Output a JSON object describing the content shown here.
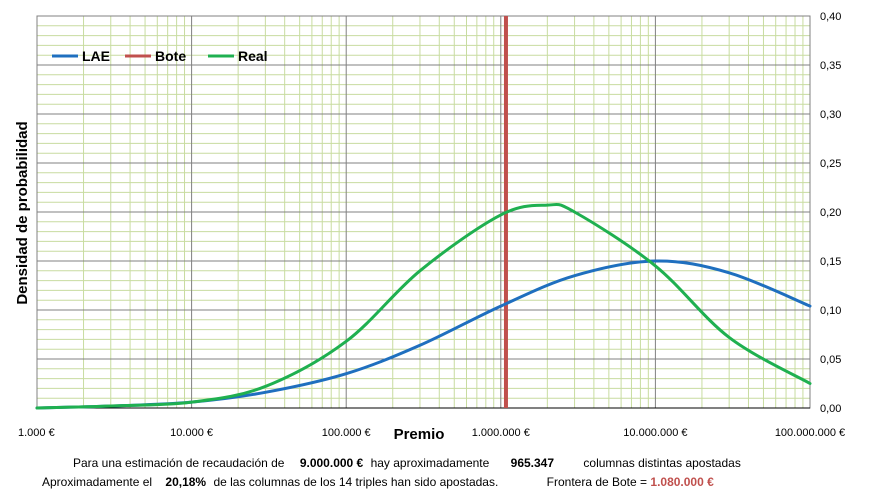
{
  "chart_data": {
    "type": "line",
    "x_scale": "log",
    "xlim": [
      1000,
      100000000
    ],
    "ylim": [
      0,
      0.4
    ],
    "xlabel": "Premio",
    "ylabel": "Densidad de probabilidad",
    "x_tick_labels": [
      "1.000 €",
      "10.000 €",
      "100.000 €",
      "1.000.000 €",
      "10.000.000 €",
      "100.000.000 €"
    ],
    "x_tick_values": [
      1000,
      10000,
      100000,
      1000000,
      10000000,
      100000000
    ],
    "y_tick_labels": [
      "0,00",
      "0,05",
      "0,10",
      "0,15",
      "0,20",
      "0,25",
      "0,30",
      "0,35",
      "0,40"
    ],
    "y_tick_values": [
      0,
      0.05,
      0.1,
      0.15,
      0.2,
      0.25,
      0.3,
      0.35,
      0.4
    ],
    "y_axis_side": "right",
    "grid": true,
    "legend_position": "top-left",
    "series": [
      {
        "name": "LAE",
        "color": "#1f6fbf",
        "x": [
          1000,
          3000,
          10000,
          30000,
          100000,
          300000,
          1000000,
          3000000,
          10000000,
          30000000,
          100000000
        ],
        "y": [
          0.0,
          0.002,
          0.006,
          0.016,
          0.035,
          0.064,
          0.104,
          0.135,
          0.15,
          0.138,
          0.104
        ]
      },
      {
        "name": "Real",
        "color": "#1fb050",
        "x": [
          1000,
          3000,
          10000,
          30000,
          100000,
          300000,
          1000000,
          2000000,
          3000000,
          10000000,
          30000000,
          100000000
        ],
        "y": [
          0.0,
          0.002,
          0.006,
          0.022,
          0.068,
          0.14,
          0.197,
          0.207,
          0.2,
          0.145,
          0.072,
          0.025
        ]
      }
    ],
    "vertical_lines": [
      {
        "name": "Bote",
        "color": "#c0504d",
        "x": 1080000
      }
    ]
  },
  "caption": {
    "line1_a": "Para  una estimación de recaudación de",
    "line1_b": "9.000.000 €",
    "line1_c": "hay aproximadamente",
    "line1_d": "965.347",
    "line1_e": "columnas distintas apostadas",
    "line2_a": "Aproximadamente el",
    "line2_b": "20,18%",
    "line2_c": "de las columnas de los 14 triples han sido apostadas.",
    "line2_d": "Frontera de Bote =",
    "line2_e": "1.080.000 €"
  }
}
